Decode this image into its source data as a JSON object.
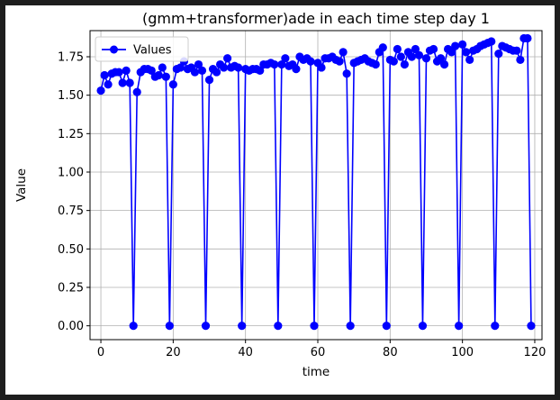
{
  "chart_data": {
    "type": "line",
    "title": "(gmm+transformer)ade in each time step day 1",
    "xlabel": "time",
    "ylabel": "Value",
    "xlim": [
      -3,
      122
    ],
    "ylim": [
      -0.09,
      1.92
    ],
    "xticks": [
      0,
      20,
      40,
      60,
      80,
      100,
      120
    ],
    "xtick_labels": [
      "0",
      "20",
      "40",
      "60",
      "80",
      "100",
      "120"
    ],
    "yticks": [
      0.0,
      0.25,
      0.5,
      0.75,
      1.0,
      1.25,
      1.5,
      1.75
    ],
    "ytick_labels": [
      "0.00",
      "0.25",
      "0.50",
      "0.75",
      "1.00",
      "1.25",
      "1.50",
      "1.75"
    ],
    "grid": true,
    "legend_position": "upper-left",
    "series": [
      {
        "name": "Values",
        "color": "#0000ff",
        "marker": "circle",
        "x": [
          0,
          1,
          2,
          3,
          4,
          5,
          6,
          7,
          8,
          9,
          10,
          11,
          12,
          13,
          14,
          15,
          16,
          17,
          18,
          19,
          20,
          21,
          22,
          23,
          24,
          25,
          26,
          27,
          28,
          29,
          30,
          31,
          32,
          33,
          34,
          35,
          36,
          37,
          38,
          39,
          40,
          41,
          42,
          43,
          44,
          45,
          46,
          47,
          48,
          49,
          50,
          51,
          52,
          53,
          54,
          55,
          56,
          57,
          58,
          59,
          60,
          61,
          62,
          63,
          64,
          65,
          66,
          67,
          68,
          69,
          70,
          71,
          72,
          73,
          74,
          75,
          76,
          77,
          78,
          79,
          80,
          81,
          82,
          83,
          84,
          85,
          86,
          87,
          88,
          89,
          90,
          91,
          92,
          93,
          94,
          95,
          96,
          97,
          98,
          99,
          100,
          101,
          102,
          103,
          104,
          105,
          106,
          107,
          108,
          109,
          110,
          111,
          112,
          113,
          114,
          115,
          116,
          117,
          118,
          119
        ],
        "values": [
          1.53,
          1.63,
          1.57,
          1.64,
          1.65,
          1.65,
          1.58,
          1.66,
          1.58,
          0.0,
          1.52,
          1.65,
          1.67,
          1.67,
          1.66,
          1.62,
          1.63,
          1.68,
          1.62,
          0.0,
          1.57,
          1.67,
          1.68,
          1.72,
          1.67,
          1.68,
          1.65,
          1.7,
          1.66,
          0.0,
          1.6,
          1.67,
          1.65,
          1.7,
          1.68,
          1.74,
          1.68,
          1.69,
          1.68,
          0.0,
          1.67,
          1.66,
          1.67,
          1.67,
          1.66,
          1.7,
          1.7,
          1.71,
          1.7,
          0.0,
          1.7,
          1.74,
          1.69,
          1.7,
          1.67,
          1.75,
          1.73,
          1.74,
          1.72,
          0.0,
          1.71,
          1.68,
          1.74,
          1.74,
          1.75,
          1.73,
          1.72,
          1.78,
          1.64,
          0.0,
          1.71,
          1.72,
          1.73,
          1.74,
          1.72,
          1.71,
          1.7,
          1.78,
          1.81,
          0.0,
          1.73,
          1.72,
          1.8,
          1.75,
          1.7,
          1.78,
          1.75,
          1.8,
          1.76,
          0.0,
          1.74,
          1.79,
          1.8,
          1.72,
          1.74,
          1.7,
          1.8,
          1.78,
          1.82,
          0.0,
          1.83,
          1.78,
          1.73,
          1.79,
          1.8,
          1.82,
          1.83,
          1.84,
          1.85,
          0.0,
          1.77,
          1.82,
          1.81,
          1.8,
          1.79,
          1.79,
          1.73,
          1.87,
          1.87,
          0.0
        ]
      }
    ]
  }
}
